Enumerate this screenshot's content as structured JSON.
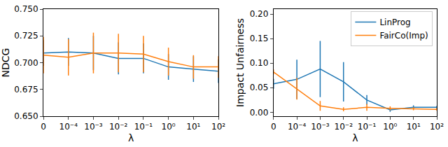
{
  "chart_data": [
    {
      "type": "line",
      "x_label": "λ",
      "y_label": "NDCG",
      "categories": [
        "0",
        "10⁻⁴",
        "10⁻³",
        "10⁻²",
        "10⁻¹",
        "10⁰",
        "10¹",
        "10²"
      ],
      "ylim": [
        0.65,
        0.75
      ],
      "yticks": [
        {
          "value": 0.65,
          "label": "0.650"
        },
        {
          "value": 0.675,
          "label": "0.675"
        },
        {
          "value": 0.7,
          "label": "0.700"
        },
        {
          "value": 0.725,
          "label": "0.725"
        },
        {
          "value": 0.75,
          "label": "0.750"
        }
      ],
      "grid": false,
      "series": [
        {
          "name": "LinProg",
          "color": "#1f77b4",
          "values": [
            0.709,
            0.71,
            0.709,
            0.704,
            0.704,
            0.696,
            0.694,
            0.692
          ],
          "errors": [
            0.012,
            0.013,
            0.016,
            0.015,
            0.014,
            0.012,
            0.012,
            0.011
          ]
        },
        {
          "name": "FairCo(Imp)",
          "color": "#ff7f0e",
          "values": [
            0.707,
            0.705,
            0.709,
            0.709,
            0.708,
            0.701,
            0.696,
            0.696
          ],
          "errors": [
            0.017,
            0.017,
            0.019,
            0.018,
            0.017,
            0.013,
            0.011,
            0.01
          ]
        }
      ]
    },
    {
      "type": "line",
      "x_label": "λ",
      "y_label": "Impact Unfairness",
      "categories": [
        "0",
        "10⁻⁴",
        "10⁻³",
        "10⁻²",
        "10⁻¹",
        "10⁰",
        "10¹",
        "10²"
      ],
      "ylim": [
        -0.008,
        0.21
      ],
      "yticks": [
        {
          "value": 0,
          "label": "0.00"
        },
        {
          "value": 0.05,
          "label": "0.05"
        },
        {
          "value": 0.1,
          "label": "0.10"
        },
        {
          "value": 0.15,
          "label": "0.15"
        },
        {
          "value": 0.2,
          "label": "0.20"
        }
      ],
      "grid": false,
      "legend": "upper right",
      "series": [
        {
          "name": "LinProg",
          "color": "#1f77b4",
          "values": [
            0.058,
            0.067,
            0.088,
            0.062,
            0.025,
            0.005,
            0.01,
            0.01
          ],
          "errors": [
            0.01,
            0.04,
            0.057,
            0.04,
            0.01,
            0.004,
            0.004,
            0.003
          ]
        },
        {
          "name": "FairCo(Imp)",
          "color": "#ff7f0e",
          "values": [
            0.082,
            0.048,
            0.013,
            0.006,
            0.01,
            0.008,
            0.007,
            0.006
          ],
          "errors": [
            0.005,
            0.022,
            0.01,
            0.004,
            0.007,
            0.004,
            0.003,
            0.003
          ]
        }
      ]
    }
  ]
}
